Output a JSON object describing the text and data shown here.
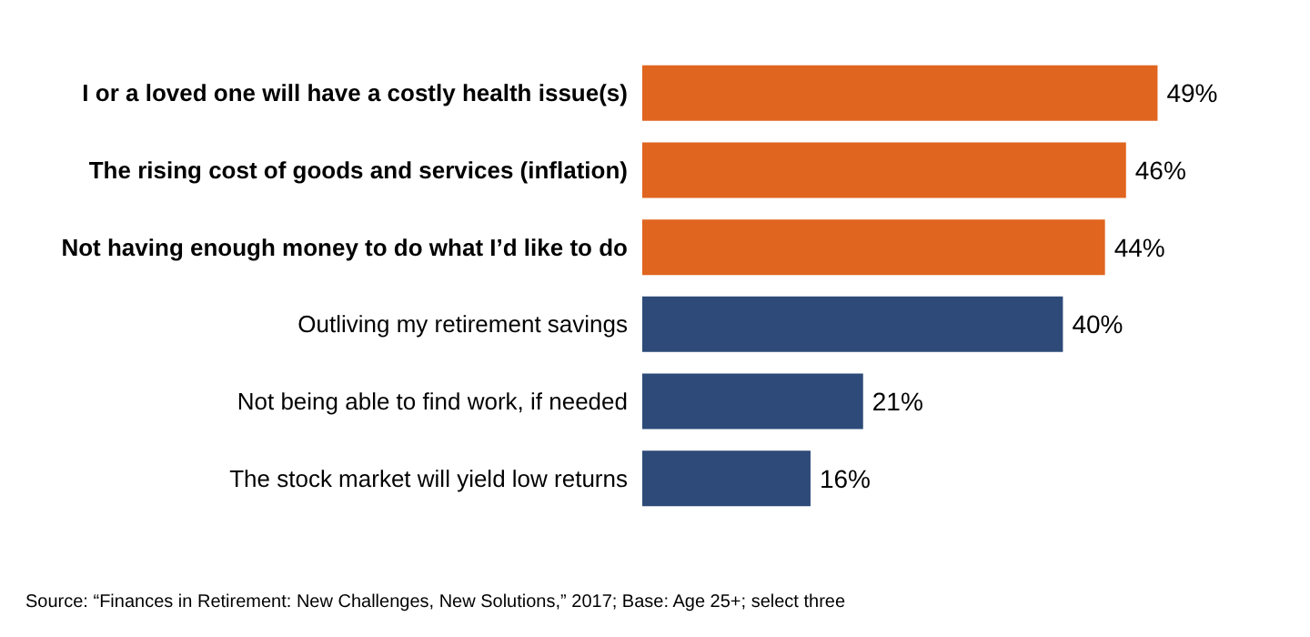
{
  "chart_data": {
    "type": "bar",
    "orientation": "horizontal",
    "categories": [
      "I or a loved one will have a costly health issue(s)",
      "The rising cost of goods and services (inflation)",
      "Not having enough money to do what I’d like to do",
      "Outliving my retirement savings",
      "Not being able to find work, if needed",
      "The stock market will yield low returns"
    ],
    "values": [
      49,
      46,
      44,
      40,
      21,
      16
    ],
    "colors": [
      "#e0651f",
      "#e0651f",
      "#e0651f",
      "#2d4a78",
      "#2d4a78",
      "#2d4a78"
    ],
    "value_labels": [
      "49%",
      "46%",
      "44%",
      "40%",
      "21%",
      "16%"
    ],
    "annotations": [
      "Source: “Finances in Retirement: New Challenges, New Solutions,” 2017; Base: Age 25+; select three"
    ]
  }
}
